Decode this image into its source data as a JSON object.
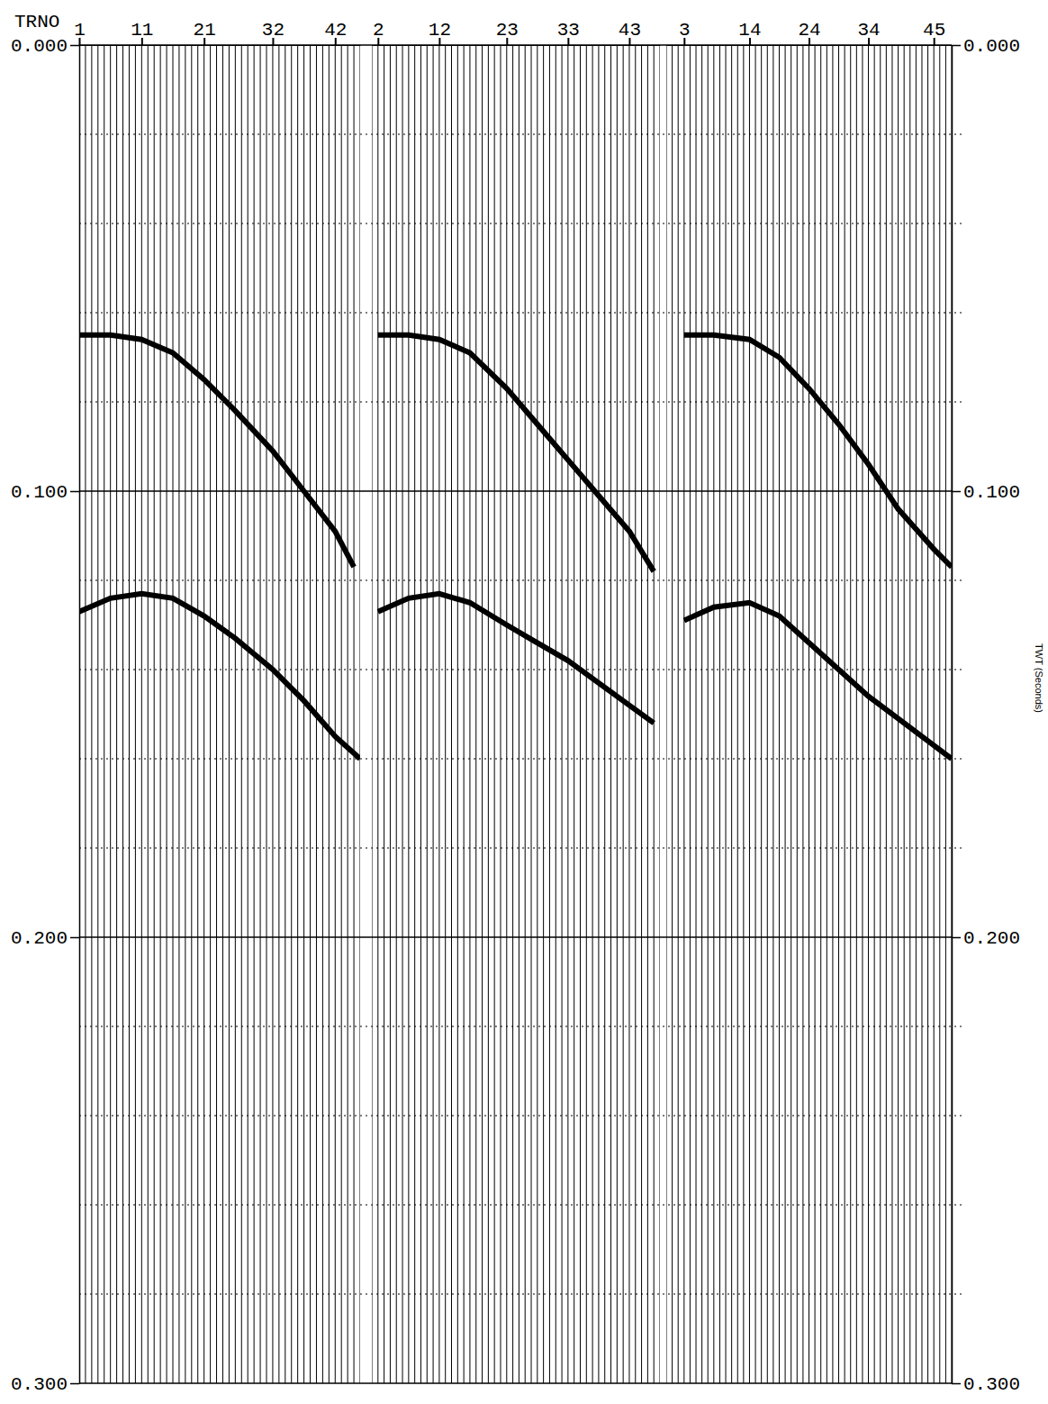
{
  "chart_data": {
    "type": "seismic",
    "x_label": "TRNO",
    "y_label": "TWT (Seconds)",
    "ylim": [
      0,
      0.3
    ],
    "yticks": [
      {
        "value": 0,
        "label": "0.000"
      },
      {
        "value": 0.1,
        "label": "0.100"
      },
      {
        "value": 0.2,
        "label": "0.200"
      },
      {
        "value": 0.3,
        "label": "0.300"
      }
    ],
    "minor_yticks": [
      0.02,
      0.04,
      0.06,
      0.08,
      0.12,
      0.14,
      0.16,
      0.18,
      0.22,
      0.24,
      0.26,
      0.28
    ],
    "grid": true,
    "panels": [
      {
        "xlim": [
          1,
          46
        ],
        "xticks": [
          1,
          11,
          21,
          32,
          42
        ],
        "series": [
          {
            "color": "#000000",
            "x": [
              1,
              6,
              11,
              16,
              21,
              26,
              32,
              37,
              42,
              45
            ],
            "values": [
              0.065,
              0.065,
              0.066,
              0.069,
              0.075,
              0.082,
              0.091,
              0.1,
              0.109,
              0.117
            ]
          },
          {
            "color": "#000000",
            "x": [
              1,
              6,
              11,
              16,
              21,
              26,
              32,
              37,
              42,
              46
            ],
            "values": [
              0.127,
              0.124,
              0.123,
              0.124,
              0.128,
              0.133,
              0.14,
              0.147,
              0.155,
              0.16
            ]
          }
        ]
      },
      {
        "xlim": [
          1,
          48
        ],
        "xticks": [
          2,
          12,
          23,
          33,
          43
        ],
        "series": [
          {
            "color": "#000000",
            "x": [
              2,
              7,
              12,
              17,
              23,
              28,
              33,
              38,
              43,
              47
            ],
            "values": [
              0.065,
              0.065,
              0.066,
              0.069,
              0.077,
              0.085,
              0.093,
              0.101,
              0.109,
              0.118
            ]
          },
          {
            "color": "#000000",
            "x": [
              2,
              7,
              12,
              17,
              23,
              28,
              33,
              38,
              43,
              47
            ],
            "values": [
              0.127,
              0.124,
              0.123,
              0.125,
              0.13,
              0.134,
              0.138,
              0.143,
              0.148,
              0.152
            ]
          }
        ]
      },
      {
        "xlim": [
          0,
          48
        ],
        "xticks": [
          3,
          14,
          24,
          34,
          45
        ],
        "series": [
          {
            "color": "#000000",
            "x": [
              3,
              8,
              14,
              19,
              24,
              29,
              34,
              39,
              45,
              48
            ],
            "values": [
              0.065,
              0.065,
              0.066,
              0.07,
              0.077,
              0.085,
              0.094,
              0.104,
              0.113,
              0.117
            ]
          },
          {
            "color": "#000000",
            "x": [
              3,
              8,
              14,
              19,
              24,
              29,
              34,
              39,
              45,
              48
            ],
            "values": [
              0.129,
              0.126,
              0.125,
              0.128,
              0.134,
              0.14,
              0.146,
              0.151,
              0.157,
              0.16
            ]
          }
        ]
      }
    ]
  }
}
